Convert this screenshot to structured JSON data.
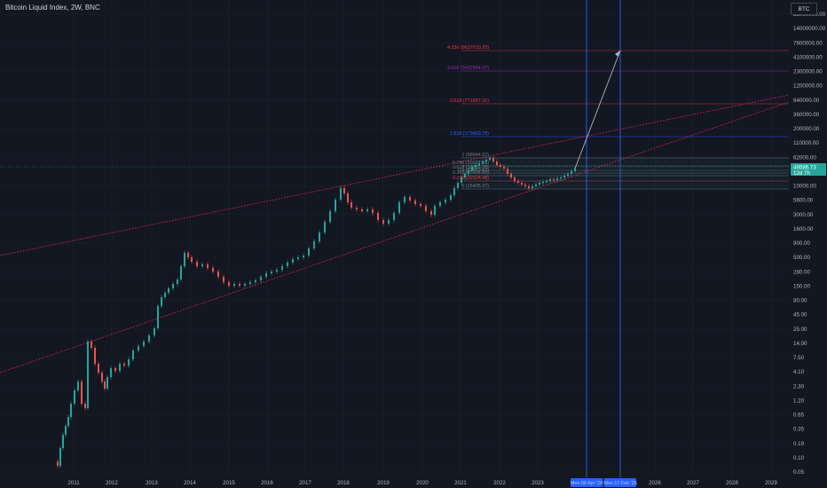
{
  "header": {
    "title": "Bitcoin Liquid Index, 2W, BNC"
  },
  "symbol_box": {
    "label": "BTC"
  },
  "price_axis": {
    "ticks": [
      "25000000.00",
      "14000000.00",
      "7600000.00",
      "4100000.00",
      "2300000.00",
      "1200000.00",
      "640000.00",
      "360000.00",
      "200000.00",
      "110000.00",
      "62000.00",
      "19000.00",
      "10000.00",
      "5600.00",
      "3000.00",
      "1600.00",
      "900.00",
      "500.00",
      "280.00",
      "150.00",
      "80.00",
      "45.00",
      "25.00",
      "14.00",
      "7.50",
      "4.10",
      "2.30",
      "1.20",
      "0.65",
      "0.35",
      "0.19",
      "0.10",
      "0.05"
    ],
    "current_price": "49586.73",
    "countdown": "12d 7h"
  },
  "time_axis": {
    "ticks": [
      "2011",
      "2012",
      "2013",
      "2014",
      "2015",
      "2016",
      "2017",
      "2018",
      "2019",
      "2020",
      "2021",
      "2022",
      "2023",
      "2026",
      "2027",
      "2028",
      "2029"
    ],
    "markers": [
      {
        "label": "Mon 08 Apr '24"
      },
      {
        "label": "Mon 17 Feb '25"
      }
    ]
  },
  "fib_levels": [
    {
      "label": "4.236 (8637610.25)",
      "color": "#f23645"
    },
    {
      "label": "3.618 (3432564.97)",
      "color": "#9c27b0"
    },
    {
      "label": "2.618 (771697.31)",
      "color": "#f23645"
    },
    {
      "label": "1.618 (173459.78)",
      "color": "#2962ff"
    },
    {
      "label": "1 (68944.62)",
      "color": "#787b86"
    },
    {
      "label": "0.786 (50297.56)",
      "color": "#787b86"
    },
    {
      "label": "0.618 (39835.28)",
      "color": "#787b86"
    },
    {
      "label": "0.5 (33453.62)",
      "color": "#787b86"
    },
    {
      "label": "0.382 (27404.90)",
      "color": "#787b86"
    },
    {
      "label": "0.236 (22024.48)",
      "color": "#f23645"
    },
    {
      "label": "0 (15495.37)",
      "color": "#787b86"
    }
  ],
  "colors": {
    "up": "#26a69a",
    "down": "#ef5350",
    "background": "#131722",
    "trend": "#e91e63",
    "vline": "#2962ff",
    "arrow": "#b2b5be"
  }
}
